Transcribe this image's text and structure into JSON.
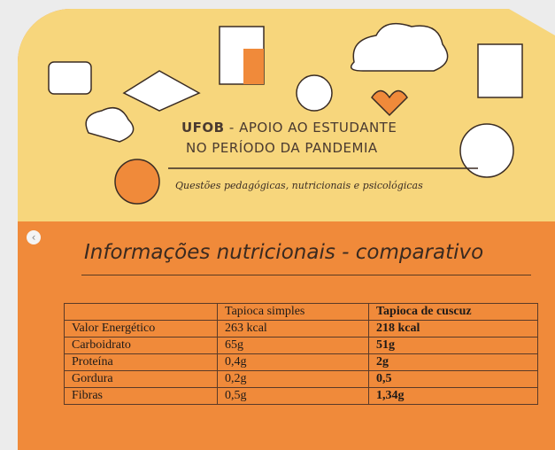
{
  "header": {
    "org": "UFOB",
    "title": "- APOIO AO ESTUDANTE",
    "subtitle": "NO PERÍODO DA PANDEMIA",
    "tagline": "Questões pedagógicas, nutricionais e psicológicas"
  },
  "section": {
    "title": "Informações nutricionais - comparativo"
  },
  "table": {
    "columns": [
      "Tapioca simples",
      "Tapioca de cuscuz"
    ],
    "rows": [
      [
        "Valor Energético",
        "263 kcal",
        "218 kcal"
      ],
      [
        "Carboidrato",
        "65g",
        "51g"
      ],
      [
        "Proteína",
        "0,4g",
        "2g"
      ],
      [
        "Gordura",
        "0,2g",
        "0,5"
      ],
      [
        "Fibras",
        "0,5g",
        "1,34g"
      ]
    ]
  }
}
